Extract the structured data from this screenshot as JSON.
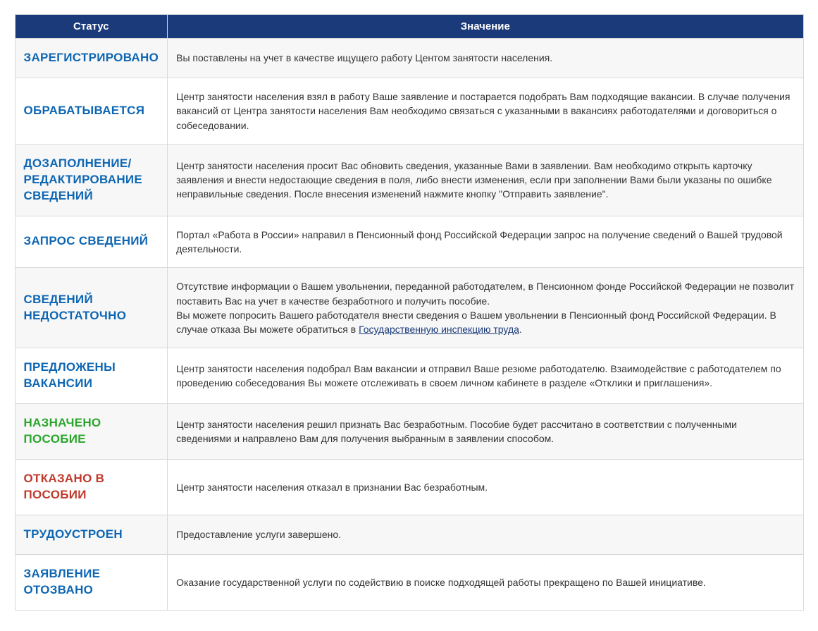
{
  "colors": {
    "header_bg": "#1a3a7a",
    "header_text": "#ffffff",
    "row_odd_bg": "#f7f7f7",
    "row_even_bg": "#ffffff",
    "border": "#d9d9d9",
    "body_text": "#333333",
    "link": "#1a3a7a",
    "status_blue": "#0d66b3",
    "status_green": "#2aa62a",
    "status_red": "#c0392b"
  },
  "typography": {
    "status_fontsize": 17,
    "status_weight": 900,
    "meaning_fontsize": 14,
    "header_fontsize": 15
  },
  "table": {
    "columns": [
      {
        "label": "Статус",
        "width": 175
      },
      {
        "label": "Значение"
      }
    ],
    "rows": [
      {
        "status": "ЗАРЕГИСТРИРОВАНО",
        "status_color": "#0d66b3",
        "meaning": "Вы поставлены на учет в качестве ищущего работу Центом занятости населения."
      },
      {
        "status": "ОБРАБАТЫВАЕТСЯ",
        "status_color": "#0d66b3",
        "meaning": "Центр занятости населения взял в работу Ваше заявление и постарается подобрать Вам подходящие вакансии. В случае получения вакансий от Центра занятости населения Вам необходимо связаться с указанными в вакансиях работодателями и договориться о собеседовании."
      },
      {
        "status": "ДОЗАПОЛНЕНИЕ/ РЕДАКТИРОВАНИЕ СВЕДЕНИЙ",
        "status_color": "#0d66b3",
        "meaning": "Центр занятости населения просит Вас обновить сведения, указанные Вами в заявлении. Вам необходимо открыть карточку заявления и внести недостающие сведения в поля, либо внести изменения, если при заполнении Вами были указаны по ошибке неправильные сведения. После внесения изменений нажмите кнопку \"Отправить заявление\"."
      },
      {
        "status": "ЗАПРОС СВЕДЕНИЙ",
        "status_color": "#0d66b3",
        "meaning": "Портал «Работа в России» направил в Пенсионный фонд Российской Федерации запрос на получение сведений о Вашей трудовой деятельности."
      },
      {
        "status": "СВЕДЕНИЙ НЕДОСТАТОЧНО",
        "status_color": "#0d66b3",
        "meaning_pre": "Отсутствие информации о Вашем увольнении, переданной работодателем, в Пенсионном фонде Российской Федерации не позволит поставить Вас на учет в качестве безработного и получить пособие.",
        "meaning_post_pre": "Вы можете попросить Вашего работодателя внести сведения о Вашем увольнении в Пенсионный фонд Российской Федерации. В случае отказа Вы можете обратиться в ",
        "link_text": "Государственную инспекцию труда",
        "meaning_post_suffix": "."
      },
      {
        "status": "ПРЕДЛОЖЕНЫ ВАКАНСИИ",
        "status_color": "#0d66b3",
        "meaning": "Центр занятости населения подобрал Вам вакансии и отправил Ваше резюме работодателю. Взаимодействие с работодателем по проведению собеседования Вы можете отслеживать в своем личном кабинете в разделе «Отклики и приглашения»."
      },
      {
        "status": "НАЗНАЧЕНО ПОСОБИЕ",
        "status_color": "#2aa62a",
        "meaning": "Центр занятости населения решил признать Вас безработным. Пособие будет рассчитано в соответствии с полученными сведениями и направлено Вам для получения выбранным в заявлении способом."
      },
      {
        "status": "ОТКАЗАНО В ПОСОБИИ",
        "status_color": "#c0392b",
        "meaning": "Центр занятости населения отказал в признании Вас безработным."
      },
      {
        "status": "ТРУДОУСТРОЕН",
        "status_color": "#0d66b3",
        "meaning": "Предоставление услуги завершено."
      },
      {
        "status": "ЗАЯВЛЕНИЕ ОТОЗВАНО",
        "status_color": "#0d66b3",
        "meaning": "Оказание государственной услуги по содействию в поиске подходящей работы прекращено по Вашей инициативе."
      }
    ]
  }
}
